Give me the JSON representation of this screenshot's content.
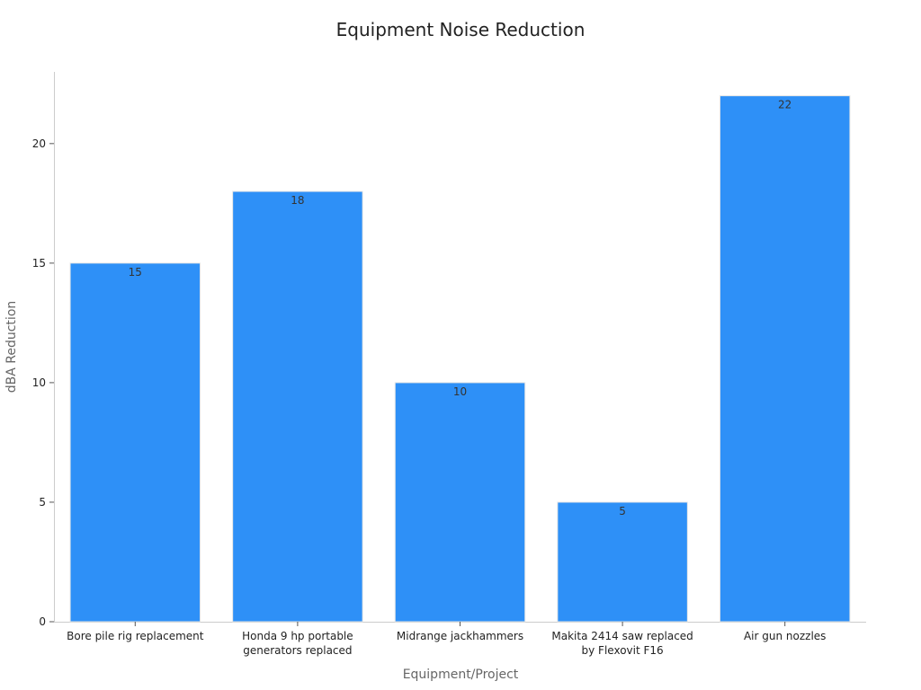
{
  "chart_data": {
    "type": "bar",
    "title": "Equipment Noise Reduction",
    "xlabel": "Equipment/Project",
    "ylabel": "dBA Reduction",
    "categories": [
      [
        "Bore pile rig replacement"
      ],
      [
        "Honda 9 hp portable",
        "generators replaced"
      ],
      [
        "Midrange jackhammers"
      ],
      [
        "Makita 2414 saw replaced",
        "by Flexovit F16"
      ],
      [
        "Air gun nozzles"
      ]
    ],
    "values": [
      15,
      18,
      10,
      5,
      22
    ],
    "data_labels": [
      "15",
      "18",
      "10",
      "5",
      "22"
    ],
    "ylim": [
      0,
      23
    ],
    "yticks": [
      0,
      5,
      10,
      15,
      20
    ],
    "grid": false,
    "bar_color": "#2e90f7"
  }
}
